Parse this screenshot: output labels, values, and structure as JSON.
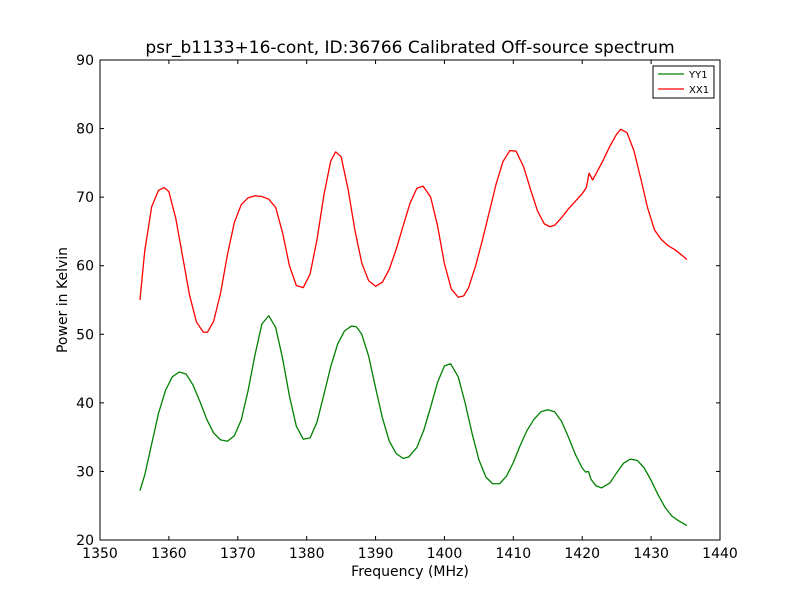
{
  "chart_data": {
    "type": "line",
    "title": "psr_b1133+16-cont, ID:36766 Calibrated Off-source spectrum",
    "xlabel": "Frequency (MHz)",
    "ylabel": "Power in Kelvin",
    "xlim": [
      1350,
      1440
    ],
    "ylim": [
      20,
      90
    ],
    "xticks": [
      1350,
      1360,
      1370,
      1380,
      1390,
      1400,
      1410,
      1420,
      1430,
      1440
    ],
    "yticks": [
      20,
      30,
      40,
      50,
      60,
      70,
      80,
      90
    ],
    "xtick_labels": [
      "1350",
      "1360",
      "1370",
      "1380",
      "1390",
      "1400",
      "1410",
      "1420",
      "1430",
      "1440"
    ],
    "ytick_labels": [
      "20",
      "30",
      "40",
      "50",
      "60",
      "70",
      "80",
      "90"
    ],
    "grid": false,
    "legend_position": "top-right",
    "series": [
      {
        "name": "YY1",
        "color": "#008000",
        "x": [
          1355.8,
          1356.5,
          1357.5,
          1358.5,
          1359.5,
          1360.5,
          1361.5,
          1362.5,
          1363.5,
          1364.5,
          1365.5,
          1366.5,
          1367.5,
          1368.5,
          1369.5,
          1370.5,
          1371.5,
          1372.5,
          1373.5,
          1374.5,
          1375.5,
          1376.5,
          1377.5,
          1378.5,
          1379.5,
          1380.5,
          1381.5,
          1382.5,
          1383.5,
          1384.5,
          1385.5,
          1386.5,
          1387.2,
          1388.0,
          1389.0,
          1390.0,
          1391.0,
          1392.0,
          1393.0,
          1394.0,
          1394.8,
          1396.0,
          1397.0,
          1398.0,
          1399.0,
          1400.0,
          1400.9,
          1402.0,
          1403.0,
          1404.0,
          1405.0,
          1406.0,
          1407.0,
          1408.0,
          1409.0,
          1410.0,
          1411.0,
          1412.0,
          1413.0,
          1414.0,
          1415.0,
          1416.0,
          1417.0,
          1418.0,
          1419.0,
          1420.0,
          1420.5,
          1420.9,
          1421.3,
          1422.0,
          1422.8,
          1424.0,
          1425.0,
          1426.0,
          1427.0,
          1428.0,
          1429.0,
          1430.0,
          1431.0,
          1432.0,
          1433.0,
          1434.0,
          1435.2
        ],
        "y": [
          27.2,
          29.5,
          34.0,
          38.5,
          41.8,
          43.8,
          44.5,
          44.2,
          42.6,
          40.2,
          37.6,
          35.6,
          34.6,
          34.4,
          35.2,
          37.5,
          41.8,
          47.0,
          51.5,
          52.7,
          51.0,
          46.5,
          41.0,
          36.6,
          34.7,
          34.9,
          37.2,
          41.2,
          45.3,
          48.6,
          50.5,
          51.2,
          51.1,
          50.0,
          46.8,
          42.2,
          37.8,
          34.4,
          32.6,
          31.9,
          32.1,
          33.5,
          36.0,
          39.4,
          43.0,
          45.4,
          45.7,
          43.8,
          40.0,
          35.6,
          31.7,
          29.2,
          28.2,
          28.2,
          29.3,
          31.3,
          33.8,
          36.0,
          37.6,
          38.7,
          39.0,
          38.7,
          37.3,
          35.0,
          32.5,
          30.5,
          29.9,
          30.0,
          28.8,
          27.9,
          27.6,
          28.3,
          29.8,
          31.2,
          31.8,
          31.6,
          30.5,
          28.7,
          26.6,
          24.8,
          23.5,
          22.8,
          22.1
        ]
      },
      {
        "name": "XX1",
        "color": "#ff0000",
        "x": [
          1355.8,
          1356.5,
          1357.5,
          1358.5,
          1359.3,
          1360.0,
          1361.0,
          1362.0,
          1363.0,
          1364.0,
          1365.0,
          1365.6,
          1366.5,
          1367.5,
          1368.5,
          1369.5,
          1370.5,
          1371.5,
          1372.5,
          1373.5,
          1374.5,
          1375.5,
          1376.5,
          1377.5,
          1378.5,
          1379.5,
          1380.5,
          1381.5,
          1382.5,
          1383.5,
          1384.2,
          1385.0,
          1386.0,
          1387.0,
          1388.0,
          1389.0,
          1390.0,
          1391.0,
          1392.0,
          1393.0,
          1394.0,
          1395.0,
          1396.0,
          1396.9,
          1398.0,
          1399.0,
          1400.0,
          1401.0,
          1402.0,
          1402.8,
          1403.5,
          1404.5,
          1405.5,
          1406.5,
          1407.5,
          1408.5,
          1409.5,
          1410.4,
          1411.5,
          1412.5,
          1413.5,
          1414.5,
          1415.3,
          1416.0,
          1417.0,
          1418.0,
          1419.0,
          1420.0,
          1420.6,
          1421.0,
          1421.5,
          1422.0,
          1423.0,
          1424.0,
          1425.0,
          1425.6,
          1426.5,
          1427.5,
          1428.5,
          1429.5,
          1430.5,
          1431.5,
          1432.5,
          1433.5,
          1434.5,
          1435.2
        ],
        "y": [
          55.0,
          62.2,
          68.6,
          71.0,
          71.4,
          70.8,
          66.9,
          61.3,
          55.7,
          51.8,
          50.3,
          50.3,
          51.9,
          56.0,
          61.6,
          66.3,
          68.9,
          69.9,
          70.2,
          70.1,
          69.7,
          68.5,
          64.8,
          60.0,
          57.1,
          56.8,
          58.8,
          63.8,
          70.3,
          75.3,
          76.6,
          75.9,
          71.2,
          65.2,
          60.4,
          57.8,
          57.0,
          57.6,
          59.5,
          62.4,
          65.8,
          69.1,
          71.3,
          71.6,
          70.0,
          65.8,
          60.3,
          56.6,
          55.4,
          55.6,
          56.8,
          59.9,
          63.7,
          67.8,
          71.9,
          75.2,
          76.8,
          76.7,
          74.4,
          71.1,
          68.0,
          66.1,
          65.7,
          65.9,
          67.0,
          68.3,
          69.4,
          70.5,
          71.4,
          73.5,
          72.5,
          73.4,
          75.3,
          77.4,
          79.2,
          79.9,
          79.4,
          76.8,
          72.7,
          68.4,
          65.2,
          63.8,
          62.9,
          62.3,
          61.5,
          60.9
        ]
      }
    ]
  }
}
